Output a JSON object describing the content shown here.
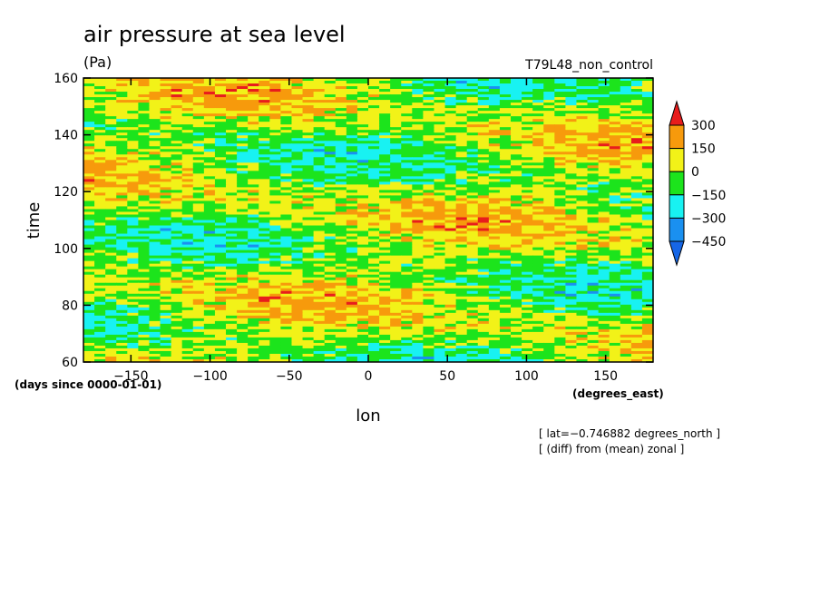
{
  "chart_data": {
    "type": "heatmap",
    "title": "air pressure at sea level",
    "units": "(Pa)",
    "run_label": "T79L48_non_control",
    "xlabel": "lon",
    "x_units": "(degrees_east)",
    "ylabel": "time",
    "y_units": "(days since 0000-01-01)",
    "xlim": [
      -180,
      180
    ],
    "ylim": [
      60,
      160
    ],
    "x_ticks": [
      -150,
      -100,
      -50,
      0,
      50,
      100,
      150
    ],
    "x_tick_labels": [
      "−150",
      "−100",
      "−50",
      "0",
      "50",
      "100",
      "150"
    ],
    "y_ticks": [
      60,
      80,
      100,
      120,
      140,
      160
    ],
    "y_tick_labels": [
      "60",
      "80",
      "100",
      "120",
      "140",
      "160"
    ],
    "colorbar": {
      "levels": [
        300,
        150,
        0,
        -150,
        -300,
        -450
      ],
      "labels": [
        "300",
        "150",
        "0",
        "−150",
        "−300",
        "−450"
      ],
      "colors": [
        "#e81c1c",
        "#f79a0c",
        "#f2f218",
        "#1ce41c",
        "#18f2f2",
        "#1a90f0",
        "#1666e6"
      ]
    },
    "notes": [
      "[ lat=−0.746882 degrees_north ]",
      "[ (diff) from (mean) zonal ]"
    ],
    "grid": false
  }
}
